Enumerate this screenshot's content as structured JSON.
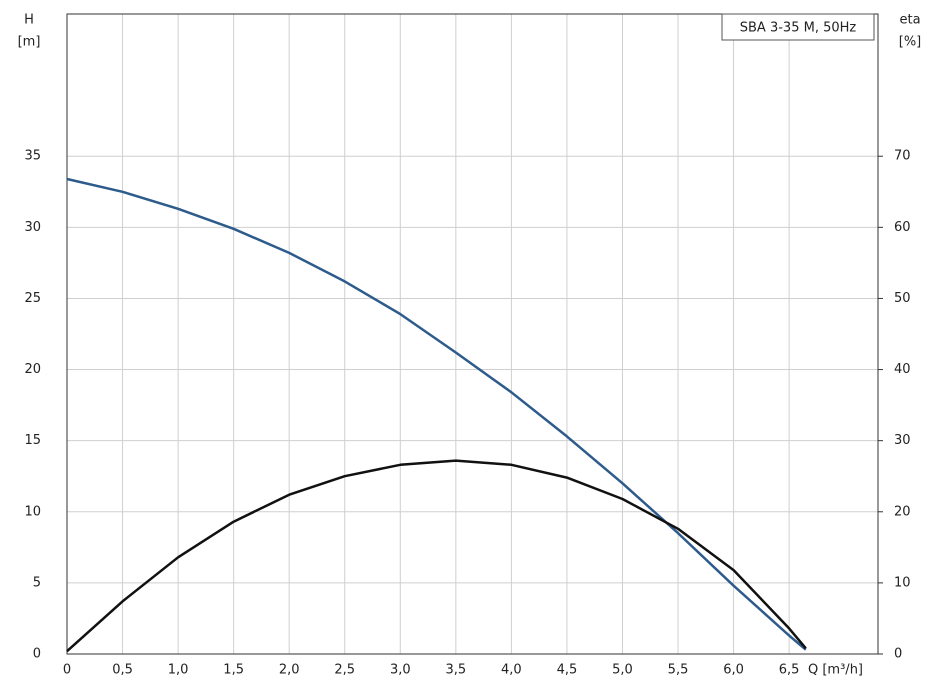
{
  "chart_data": {
    "type": "line",
    "title": "SBA 3-35 M, 50Hz",
    "x_label": "Q [m³/h]",
    "y_label": "H",
    "y_unit": "[m]",
    "y2_label": "eta",
    "y2_unit": "[%]",
    "x": [
      0,
      0.5,
      1.0,
      1.5,
      2.0,
      2.5,
      3.0,
      3.5,
      4.0,
      4.5,
      5.0,
      5.5,
      6.0,
      6.5,
      6.65
    ],
    "series": [
      {
        "name": "H",
        "color": "#2d5b8c",
        "values": [
          33.4,
          32.5,
          31.3,
          29.9,
          28.2,
          26.2,
          23.9,
          21.2,
          18.4,
          15.3,
          12.0,
          8.5,
          4.8,
          1.3,
          0.3
        ]
      },
      {
        "name": "eta",
        "color": "#111111",
        "axis": "y2",
        "values": [
          0.4,
          7.4,
          13.6,
          18.6,
          22.4,
          25.0,
          26.6,
          27.2,
          26.6,
          24.8,
          21.8,
          17.6,
          11.8,
          3.6,
          0.8
        ]
      }
    ],
    "xlim": [
      0,
      7.3
    ],
    "xticks": [
      0,
      {
        "value": 0.5,
        "label": "0,5"
      },
      {
        "value": 1.0,
        "label": "1,0"
      },
      {
        "value": 1.5,
        "label": "1,5"
      },
      {
        "value": 2.0,
        "label": "2,0"
      },
      {
        "value": 2.5,
        "label": "2,5"
      },
      {
        "value": 3.0,
        "label": "3,0"
      },
      {
        "value": 3.5,
        "label": "3,5"
      },
      {
        "value": 4.0,
        "label": "4,0"
      },
      {
        "value": 4.5,
        "label": "4,5"
      },
      {
        "value": 5.0,
        "label": "5,0"
      },
      {
        "value": 5.5,
        "label": "5,5"
      },
      {
        "value": 6.0,
        "label": "6,0"
      },
      {
        "value": 6.5,
        "label": "6,5"
      }
    ],
    "ylim": [
      0,
      45
    ],
    "yticks": [
      0,
      5,
      10,
      15,
      20,
      25,
      30,
      35
    ],
    "y2lim": [
      0,
      90
    ],
    "y2ticks": [
      0,
      10,
      20,
      30,
      40,
      50,
      60,
      70
    ],
    "grid": true
  }
}
